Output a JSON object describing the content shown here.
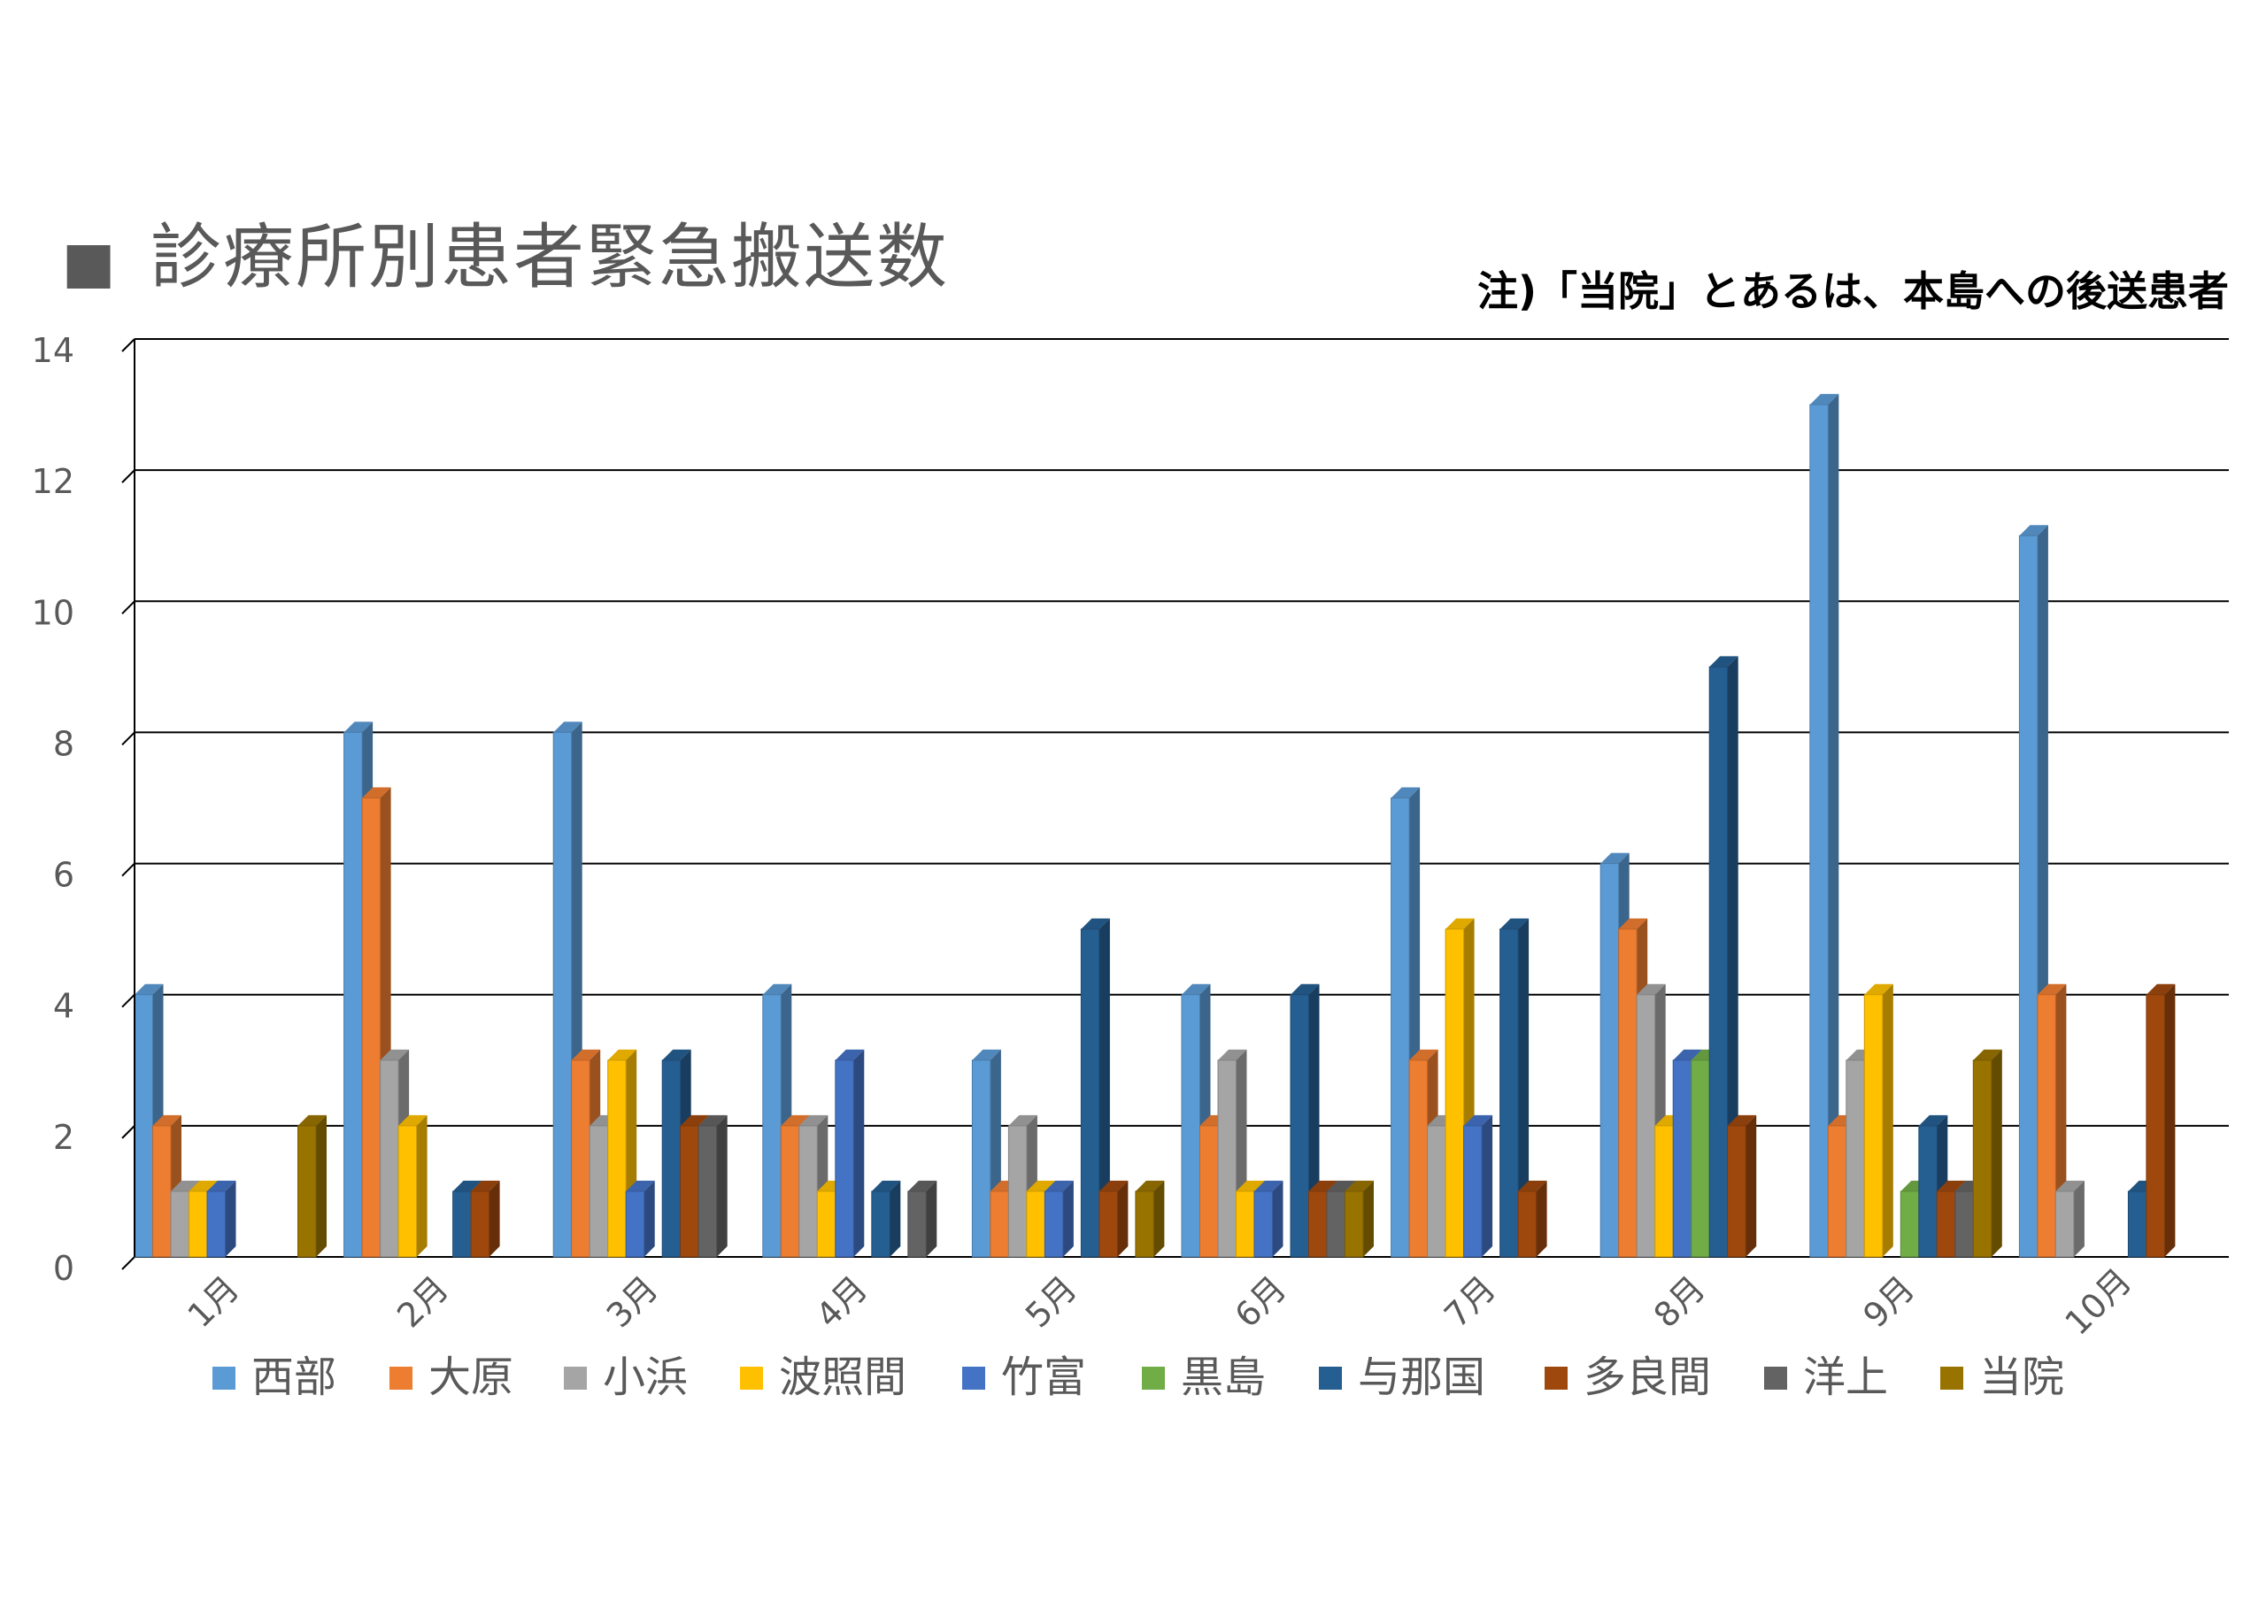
{
  "header": {
    "title_square": "■",
    "title": "診療所別患者緊急搬送数",
    "note": "注)「当院」とあるは、本島への後送患者"
  },
  "chart_data": {
    "type": "bar",
    "title": "診療所別患者緊急搬送数",
    "xlabel": "",
    "ylabel": "",
    "ylim": [
      0,
      14
    ],
    "yticks": [
      "0",
      "2",
      "4",
      "6",
      "8",
      "10",
      "12",
      "14"
    ],
    "grid": true,
    "legend": "bottom",
    "categories": [
      "1月",
      "2月",
      "3月",
      "4月",
      "5月",
      "6月",
      "7月",
      "8月",
      "9月",
      "10月"
    ],
    "series": [
      {
        "name": "西部",
        "color": "#5B9BD5",
        "values": [
          4,
          8,
          8,
          4,
          3,
          4,
          7,
          6,
          13,
          11
        ]
      },
      {
        "name": "大原",
        "color": "#ED7D31",
        "values": [
          2,
          7,
          3,
          2,
          1,
          2,
          3,
          5,
          2,
          4
        ]
      },
      {
        "name": "小浜",
        "color": "#A5A5A5",
        "values": [
          1,
          3,
          2,
          2,
          2,
          3,
          2,
          4,
          3,
          1
        ]
      },
      {
        "name": "波照間",
        "color": "#FFC000",
        "values": [
          1,
          2,
          3,
          1,
          1,
          1,
          5,
          2,
          4,
          0
        ]
      },
      {
        "name": "竹富",
        "color": "#4472C4",
        "values": [
          1,
          0,
          1,
          3,
          1,
          1,
          2,
          3,
          0,
          0
        ]
      },
      {
        "name": "黒島",
        "color": "#70AD47",
        "values": [
          0,
          0,
          0,
          0,
          0,
          0,
          0,
          3,
          1,
          0
        ]
      },
      {
        "name": "与那国",
        "color": "#255E91",
        "values": [
          0,
          1,
          3,
          1,
          5,
          4,
          5,
          9,
          2,
          1
        ]
      },
      {
        "name": "多良間",
        "color": "#9E480E",
        "values": [
          0,
          1,
          2,
          0,
          1,
          1,
          1,
          2,
          1,
          4
        ]
      },
      {
        "name": "洋上",
        "color": "#636363",
        "values": [
          0,
          0,
          2,
          1,
          0,
          1,
          0,
          0,
          1,
          0
        ]
      },
      {
        "name": "当院",
        "color": "#997300",
        "values": [
          2,
          0,
          0,
          0,
          1,
          1,
          0,
          0,
          3,
          0
        ]
      }
    ]
  }
}
